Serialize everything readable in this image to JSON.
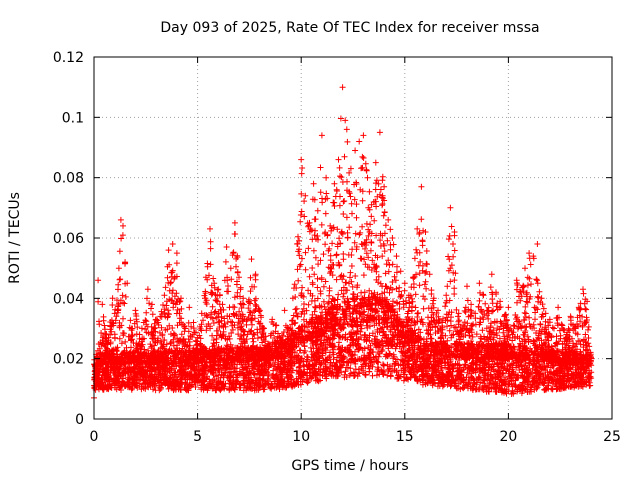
{
  "chart_data": {
    "type": "scatter",
    "title": "Day 093 of 2025, Rate Of TEC Index for receiver mssa",
    "xlabel": "GPS time / hours",
    "ylabel": "ROTI / TECUs",
    "xlim": [
      0,
      25
    ],
    "ylim": [
      0,
      0.12
    ],
    "xticks": [
      0,
      5,
      10,
      15,
      20,
      25
    ],
    "xtick_labels": [
      "0",
      "5",
      "10",
      "15",
      "20",
      "25"
    ],
    "yticks": [
      0,
      0.02,
      0.04,
      0.06,
      0.08,
      0.1,
      0.12
    ],
    "ytick_labels": [
      "0",
      "0.02",
      "0.04",
      "0.06",
      "0.08",
      "0.1",
      "0.12"
    ],
    "grid": true,
    "marker": "plus",
    "color": "#ff0000",
    "series": [
      {
        "points": [
          [
            0.0,
            0.007
          ],
          [
            0.1,
            0.014
          ],
          [
            0.2,
            0.046
          ],
          [
            0.3,
            0.022
          ],
          [
            0.4,
            0.038
          ],
          [
            0.5,
            0.031
          ],
          [
            0.7,
            0.027
          ],
          [
            0.9,
            0.04
          ],
          [
            1.0,
            0.035
          ],
          [
            1.2,
            0.05
          ],
          [
            1.3,
            0.066
          ],
          [
            1.4,
            0.064
          ],
          [
            1.5,
            0.052
          ],
          [
            1.6,
            0.045
          ],
          [
            1.8,
            0.03
          ],
          [
            2.0,
            0.036
          ],
          [
            2.2,
            0.028
          ],
          [
            2.4,
            0.032
          ],
          [
            2.6,
            0.043
          ],
          [
            2.8,
            0.038
          ],
          [
            3.0,
            0.033
          ],
          [
            3.2,
            0.034
          ],
          [
            3.4,
            0.041
          ],
          [
            3.6,
            0.056
          ],
          [
            3.8,
            0.058
          ],
          [
            3.9,
            0.047
          ],
          [
            4.0,
            0.055
          ],
          [
            4.2,
            0.04
          ],
          [
            4.4,
            0.03
          ],
          [
            4.6,
            0.037
          ],
          [
            4.8,
            0.032
          ],
          [
            5.0,
            0.027
          ],
          [
            5.2,
            0.035
          ],
          [
            5.4,
            0.047
          ],
          [
            5.6,
            0.063
          ],
          [
            5.8,
            0.045
          ],
          [
            6.0,
            0.043
          ],
          [
            6.2,
            0.038
          ],
          [
            6.4,
            0.057
          ],
          [
            6.6,
            0.05
          ],
          [
            6.8,
            0.065
          ],
          [
            7.0,
            0.047
          ],
          [
            7.2,
            0.04
          ],
          [
            7.4,
            0.033
          ],
          [
            7.6,
            0.053
          ],
          [
            7.8,
            0.048
          ],
          [
            8.0,
            0.036
          ],
          [
            8.2,
            0.03
          ],
          [
            8.4,
            0.025
          ],
          [
            8.6,
            0.033
          ],
          [
            8.8,
            0.031
          ],
          [
            9.0,
            0.026
          ],
          [
            9.2,
            0.036
          ],
          [
            9.4,
            0.03
          ],
          [
            9.6,
            0.04
          ],
          [
            9.8,
            0.058
          ],
          [
            10.0,
            0.086
          ],
          [
            10.2,
            0.074
          ],
          [
            10.4,
            0.065
          ],
          [
            10.6,
            0.078
          ],
          [
            10.8,
            0.069
          ],
          [
            11.0,
            0.094
          ],
          [
            11.2,
            0.08
          ],
          [
            11.4,
            0.064
          ],
          [
            11.6,
            0.078
          ],
          [
            11.8,
            0.086
          ],
          [
            12.0,
            0.11
          ],
          [
            12.2,
            0.096
          ],
          [
            12.4,
            0.083
          ],
          [
            12.6,
            0.089
          ],
          [
            12.8,
            0.092
          ],
          [
            13.0,
            0.094
          ],
          [
            13.2,
            0.08
          ],
          [
            13.4,
            0.071
          ],
          [
            13.6,
            0.085
          ],
          [
            13.8,
            0.095
          ],
          [
            14.0,
            0.077
          ],
          [
            14.2,
            0.066
          ],
          [
            14.4,
            0.06
          ],
          [
            14.6,
            0.054
          ],
          [
            14.8,
            0.049
          ],
          [
            15.0,
            0.045
          ],
          [
            15.2,
            0.041
          ],
          [
            15.4,
            0.047
          ],
          [
            15.6,
            0.063
          ],
          [
            15.8,
            0.077
          ],
          [
            16.0,
            0.062
          ],
          [
            16.2,
            0.048
          ],
          [
            16.4,
            0.04
          ],
          [
            16.6,
            0.036
          ],
          [
            16.8,
            0.032
          ],
          [
            17.0,
            0.041
          ],
          [
            17.2,
            0.07
          ],
          [
            17.4,
            0.062
          ],
          [
            17.6,
            0.035
          ],
          [
            17.8,
            0.03
          ],
          [
            18.0,
            0.044
          ],
          [
            18.2,
            0.038
          ],
          [
            18.4,
            0.035
          ],
          [
            18.6,
            0.045
          ],
          [
            18.8,
            0.041
          ],
          [
            19.0,
            0.036
          ],
          [
            19.2,
            0.048
          ],
          [
            19.4,
            0.042
          ],
          [
            19.6,
            0.039
          ],
          [
            19.8,
            0.034
          ],
          [
            20.0,
            0.037
          ],
          [
            20.2,
            0.028
          ],
          [
            20.4,
            0.046
          ],
          [
            20.6,
            0.042
          ],
          [
            20.8,
            0.05
          ],
          [
            21.0,
            0.055
          ],
          [
            21.2,
            0.054
          ],
          [
            21.4,
            0.058
          ],
          [
            21.6,
            0.04
          ],
          [
            21.8,
            0.035
          ],
          [
            22.0,
            0.033
          ],
          [
            22.2,
            0.03
          ],
          [
            22.4,
            0.037
          ],
          [
            22.6,
            0.031
          ],
          [
            22.8,
            0.028
          ],
          [
            23.0,
            0.034
          ],
          [
            23.2,
            0.03
          ],
          [
            23.4,
            0.037
          ],
          [
            23.6,
            0.043
          ],
          [
            23.8,
            0.039
          ],
          [
            24.0,
            0.02
          ]
        ]
      }
    ],
    "dense_band": {
      "x_range": [
        0,
        24
      ],
      "y_floor": [
        [
          0,
          0.006
        ],
        [
          8,
          0.005
        ],
        [
          12,
          0.006
        ],
        [
          16,
          0.007
        ],
        [
          20,
          0.003
        ],
        [
          24,
          0.008
        ]
      ],
      "y_core": [
        [
          0,
          0.018
        ],
        [
          5,
          0.019
        ],
        [
          9,
          0.02
        ],
        [
          10,
          0.025
        ],
        [
          12,
          0.032
        ],
        [
          14,
          0.033
        ],
        [
          15,
          0.026
        ],
        [
          16,
          0.021
        ],
        [
          20,
          0.02
        ],
        [
          24,
          0.018
        ]
      ]
    }
  }
}
